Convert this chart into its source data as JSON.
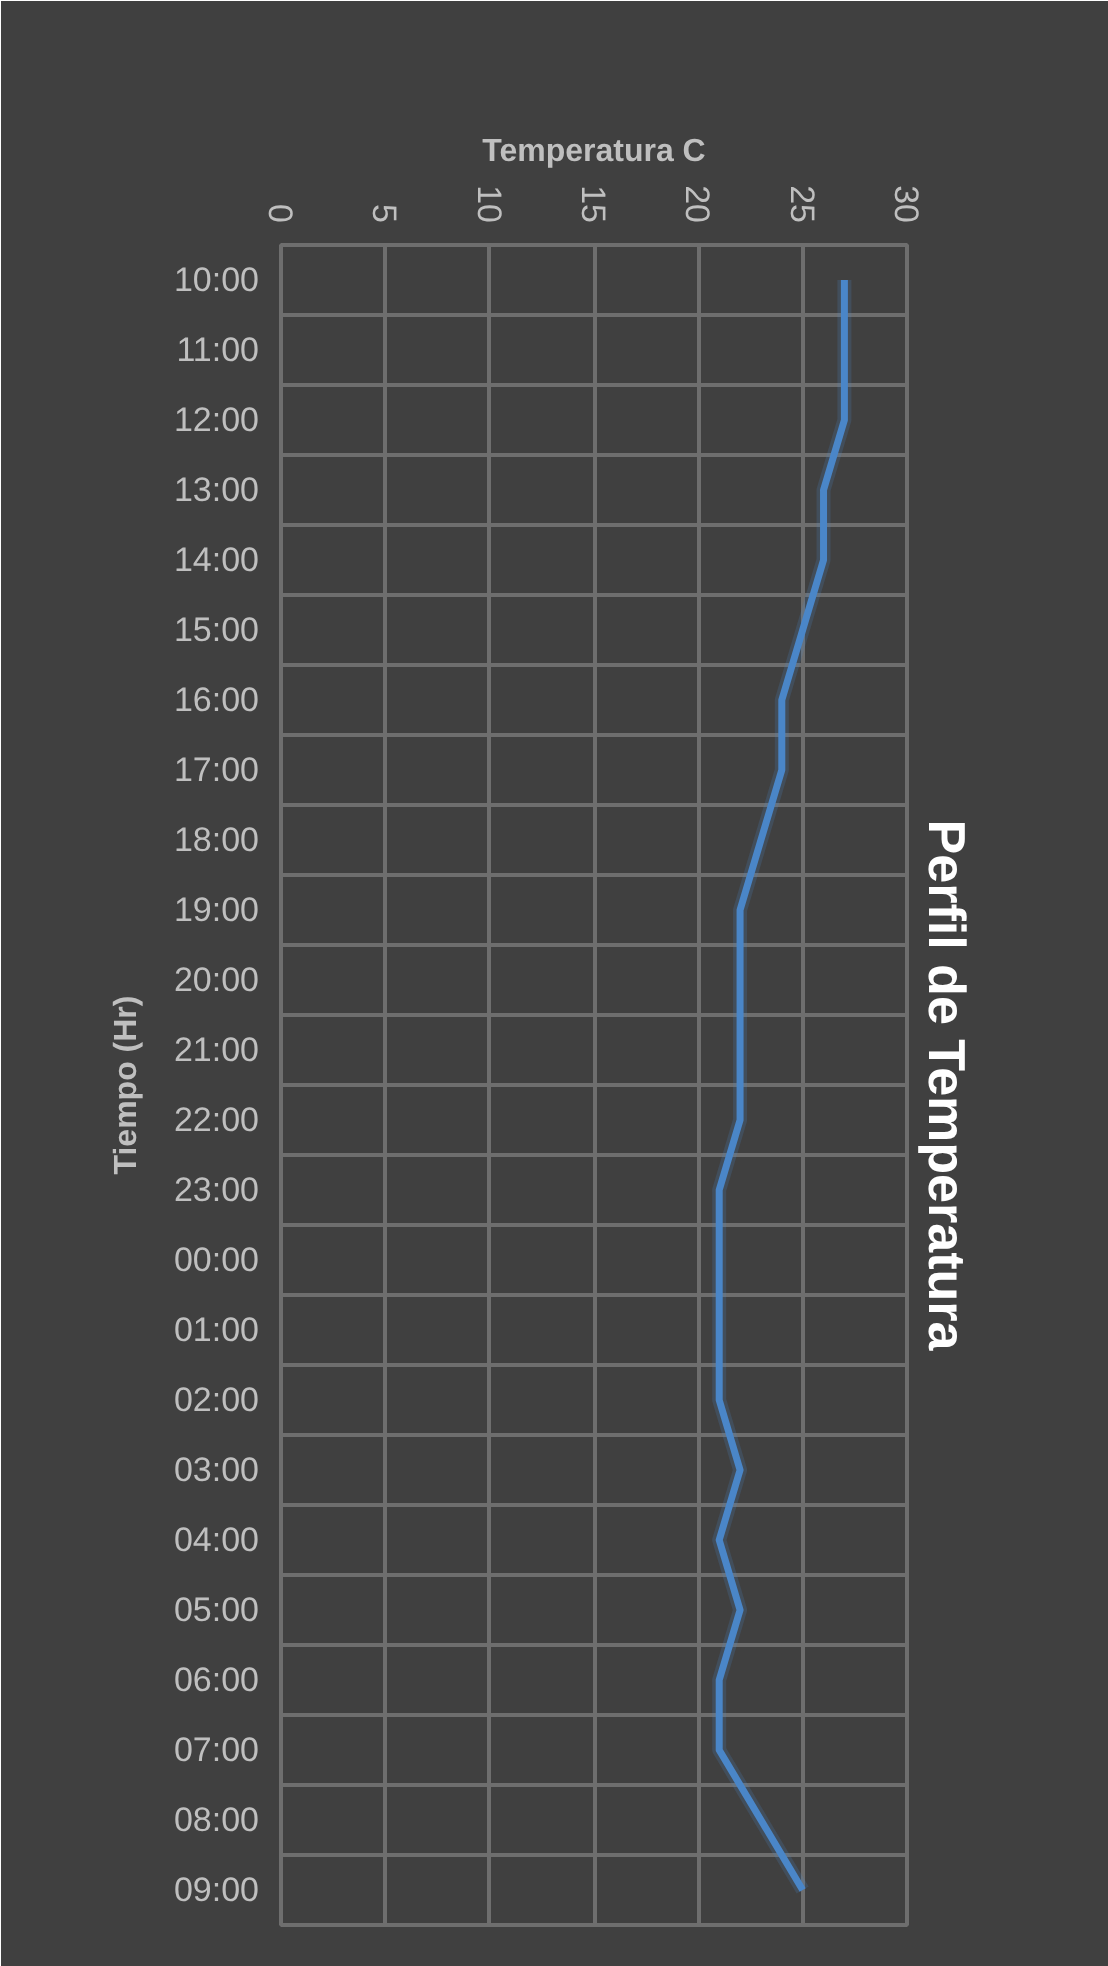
{
  "chart_data": {
    "type": "line",
    "orientation": "horizontal",
    "title": "Perfil de Temperatura",
    "xlabel": "Temperatura C",
    "ylabel": "Tiempo (Hr)",
    "categories": [
      "10:00",
      "11:00",
      "12:00",
      "13:00",
      "14:00",
      "15:00",
      "16:00",
      "17:00",
      "18:00",
      "19:00",
      "20:00",
      "21:00",
      "22:00",
      "23:00",
      "00:00",
      "01:00",
      "02:00",
      "03:00",
      "04:00",
      "05:00",
      "06:00",
      "07:00",
      "08:00",
      "09:00"
    ],
    "series": [
      {
        "color": "#4a86c8",
        "values": [
          27,
          27,
          27,
          26,
          26,
          25,
          24,
          24,
          23,
          22,
          22,
          22,
          22,
          21,
          21,
          21,
          21,
          22,
          21,
          22,
          21,
          21,
          23,
          25
        ]
      }
    ],
    "xlim": [
      0,
      30
    ],
    "xticks": [
      0,
      5,
      10,
      15,
      20,
      25,
      30
    ],
    "grid": true,
    "marker": "none",
    "line_style": "solid"
  }
}
